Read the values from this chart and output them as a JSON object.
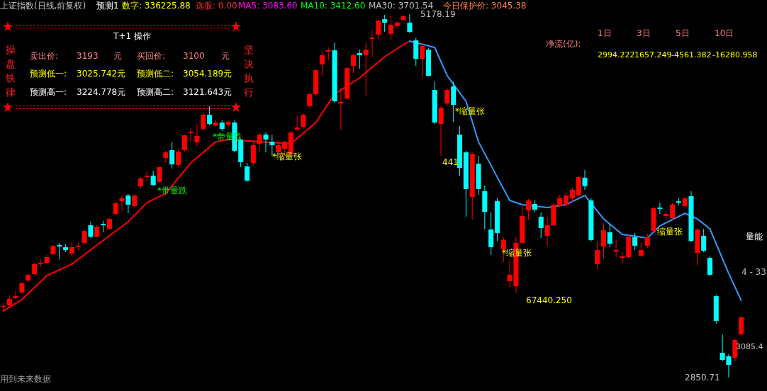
{
  "chart_data": {
    "type": "candlestick",
    "categories": [
      null,
      null,
      null,
      null,
      null,
      null,
      null,
      null,
      null,
      null,
      null,
      null,
      null,
      null,
      null,
      null,
      null,
      null,
      null,
      null,
      null,
      null,
      null,
      null,
      null,
      null,
      null,
      null,
      null,
      null,
      null,
      null,
      null,
      null,
      null,
      null,
      null,
      null,
      null,
      null,
      null,
      null,
      null,
      null,
      null,
      null,
      null,
      null,
      null,
      null,
      null,
      null,
      null,
      null,
      null,
      null,
      null,
      null,
      null,
      null,
      null,
      null,
      null,
      null,
      null,
      null,
      null,
      null,
      null,
      null,
      null,
      null,
      null,
      null,
      null,
      null,
      null,
      null,
      null,
      null,
      null,
      null,
      null,
      null,
      null,
      null,
      null,
      null,
      null,
      null,
      null,
      null,
      null,
      null,
      null,
      null,
      null,
      null,
      null,
      null,
      null,
      null,
      null,
      null,
      null,
      null,
      null,
      null,
      null,
      null,
      null,
      null,
      null,
      null,
      null,
      null,
      null,
      null,
      null
    ],
    "ohlc": [
      [
        3304,
        3327,
        3282,
        3309
      ],
      [
        3313,
        3377,
        3304,
        3354
      ],
      [
        3359,
        3404,
        3354,
        3372
      ],
      [
        3395,
        3463,
        3391,
        3454
      ],
      [
        3472,
        3518,
        3463,
        3509
      ],
      [
        3513,
        3586,
        3509,
        3577
      ],
      [
        3577,
        3608,
        3558,
        3586
      ],
      [
        3586,
        3636,
        3581,
        3622
      ],
      [
        3640,
        3699,
        3636,
        3695
      ],
      [
        3699,
        3713,
        3608,
        3690
      ],
      [
        3686,
        3704,
        3654,
        3667
      ],
      [
        3645,
        3713,
        3627,
        3686
      ],
      [
        3686,
        3717,
        3667,
        3695
      ],
      [
        3713,
        3794,
        3708,
        3790
      ],
      [
        3826,
        3849,
        3744,
        3753
      ],
      [
        3753,
        3826,
        3749,
        3817
      ],
      [
        3835,
        3853,
        3781,
        3826
      ],
      [
        3803,
        3871,
        3799,
        3867
      ],
      [
        3899,
        3976,
        3894,
        3967
      ],
      [
        3980,
        4017,
        3917,
        3999
      ],
      [
        4017,
        4026,
        3903,
        3958
      ],
      [
        3949,
        4021,
        3944,
        4017
      ],
      [
        4076,
        4135,
        4062,
        4126
      ],
      [
        4135,
        4175,
        4107,
        4144
      ],
      [
        4144,
        4175,
        4076,
        4085
      ],
      [
        4103,
        4203,
        4098,
        4198
      ],
      [
        4257,
        4303,
        4225,
        4293
      ],
      [
        4307,
        4361,
        4189,
        4216
      ],
      [
        4212,
        4307,
        4198,
        4298
      ],
      [
        4307,
        4407,
        4298,
        4402
      ],
      [
        4416,
        4448,
        4361,
        4425
      ],
      [
        4357,
        4475,
        4330,
        4398
      ],
      [
        4443,
        4543,
        4434,
        4534
      ],
      [
        4534,
        4588,
        4466,
        4475
      ],
      [
        4466,
        4498,
        4457,
        4484
      ],
      [
        4484,
        4498,
        4430,
        4443
      ],
      [
        4470,
        4498,
        4452,
        4489
      ],
      [
        4484,
        4498,
        4293,
        4303
      ],
      [
        4375,
        4380,
        4198,
        4230
      ],
      [
        4203,
        4225,
        4103,
        4112
      ],
      [
        4225,
        4361,
        4207,
        4339
      ],
      [
        4348,
        4416,
        4293,
        4407
      ],
      [
        4407,
        4420,
        4293,
        4375
      ],
      [
        4361,
        4407,
        4271,
        4339
      ],
      [
        4293,
        4361,
        4280,
        4339
      ],
      [
        4316,
        4371,
        4271,
        4361
      ],
      [
        4284,
        4430,
        4280,
        4420
      ],
      [
        4439,
        4529,
        4430,
        4452
      ],
      [
        4457,
        4543,
        4443,
        4534
      ],
      [
        4588,
        4675,
        4579,
        4666
      ],
      [
        4666,
        4824,
        4656,
        4820
      ],
      [
        4856,
        4938,
        4783,
        4915
      ],
      [
        4938,
        4965,
        4883,
        4947
      ],
      [
        4947,
        4997,
        4611,
        4620
      ],
      [
        4606,
        4702,
        4439,
        4616
      ],
      [
        4638,
        4838,
        4634,
        4833
      ],
      [
        4847,
        4924,
        4802,
        4915
      ],
      [
        4929,
        4951,
        4829,
        4915
      ],
      [
        4915,
        4997,
        4656,
        4951
      ],
      [
        5019,
        5074,
        4906,
        5028
      ],
      [
        5047,
        5142,
        5019,
        5137
      ],
      [
        5146,
        5174,
        5065,
        5124
      ],
      [
        5051,
        5169,
        5010,
        5110
      ],
      [
        5101,
        5133,
        5087,
        5124
      ],
      [
        5142,
        5174,
        5133,
        5165
      ],
      [
        5124,
        5178.19,
        5056,
        5065
      ],
      [
        5010,
        5028,
        4847,
        4892
      ],
      [
        4892,
        4997,
        4770,
        4974
      ],
      [
        4951,
        4960,
        4779,
        4783
      ],
      [
        4693,
        4747,
        4475,
        4484
      ],
      [
        4475,
        4588,
        4271,
        4579
      ],
      [
        4606,
        4702,
        4588,
        4693
      ],
      [
        4715,
        4747,
        4489,
        4597
      ],
      [
        4407,
        4461,
        4144,
        4194
      ],
      [
        4293,
        4303,
        3881,
        4058
      ],
      [
        4008,
        4293,
        3862,
        4284
      ],
      [
        4221,
        4271,
        4021,
        4058
      ],
      [
        4044,
        4080,
        3799,
        3912
      ],
      [
        3799,
        3908,
        3636,
        3686
      ],
      [
        3980,
        3999,
        3726,
        3776
      ],
      [
        3672,
        3753,
        3590,
        3731
      ],
      [
        3468,
        3604,
        3427,
        3509
      ],
      [
        3436,
        3753,
        3391,
        3713
      ],
      [
        3713,
        3949,
        3704,
        3885
      ],
      [
        3921,
        3994,
        3862,
        3985
      ],
      [
        3962,
        3985,
        3908,
        3926
      ],
      [
        3881,
        3908,
        3744,
        3808
      ],
      [
        3758,
        3881,
        3695,
        3826
      ],
      [
        3826,
        3967,
        3817,
        3958
      ],
      [
        3949,
        4021,
        3940,
        3999
      ],
      [
        3958,
        4035,
        3944,
        4017
      ],
      [
        3999,
        4067,
        3976,
        4053
      ],
      [
        4017,
        4144,
        4008,
        4135
      ],
      [
        4131,
        4180,
        4053,
        4076
      ],
      [
        3985,
        3999,
        3722,
        3731
      ],
      [
        3577,
        3726,
        3545,
        3667
      ],
      [
        3690,
        3840,
        3613,
        3794
      ],
      [
        3781,
        3835,
        3686,
        3708
      ],
      [
        3658,
        3735,
        3622,
        3667
      ],
      [
        3617,
        3654,
        3581,
        3627
      ],
      [
        3622,
        3763,
        3613,
        3753
      ],
      [
        3749,
        3776,
        3667,
        3695
      ],
      [
        3631,
        3717,
        3622,
        3667
      ],
      [
        3695,
        3772,
        3681,
        3749
      ],
      [
        3790,
        3944,
        3781,
        3935
      ],
      [
        3940,
        3971,
        3899,
        3931
      ],
      [
        3885,
        3917,
        3862,
        3899
      ],
      [
        3871,
        3967,
        3862,
        3958
      ],
      [
        3980,
        3999,
        3953,
        3971
      ],
      [
        3949,
        4008,
        3935,
        3999
      ],
      [
        4012,
        4044,
        3717,
        3726
      ],
      [
        3649,
        3808,
        3567,
        3799
      ],
      [
        3758,
        3803,
        3654,
        3663
      ],
      [
        3617,
        3627,
        3499,
        3509
      ],
      [
        3372,
        3382,
        3195,
        3214
      ],
      [
        3009,
        3127,
        2955,
        2964
      ],
      [
        2987,
        3000,
        2850.71,
        2932
      ],
      [
        2978,
        3100,
        2955,
        3091
      ],
      [
        3127,
        3245,
        3119,
        3236
      ]
    ],
    "colors": [
      "#ff0000",
      "#ff0000",
      "#ff0000",
      "#ff0000",
      "#ff0000",
      "#ff0000",
      "#ff0000",
      "#ff0000",
      "#ff0000",
      "#00ffff",
      "#00ffff",
      "#ff0000",
      "#ff0000",
      "#ff0000",
      "#00ffff",
      "#ff0000",
      "#00ffff",
      "#ff0000",
      "#ff0000",
      "#ff0000",
      "#00ffff",
      "#ff0000",
      "#ff0000",
      "#ff0000",
      "#00ffff",
      "#ff0000",
      "#ff0000",
      "#00ffff",
      "#ff0000",
      "#ff0000",
      "#ff0000",
      "#ff0000",
      "#ff0000",
      "#00ffff",
      "#ff0000",
      "#00ffff",
      "#ff0000",
      "#00ffff",
      "#00ffff",
      "#00ffff",
      "#ff0000",
      "#ff0000",
      "#00ffff",
      "#00ffff",
      "#ff0000",
      "#ff0000",
      "#ff0000",
      "#ff0000",
      "#ff0000",
      "#ff0000",
      "#ff0000",
      "#ff0000",
      "#ff0000",
      "#00ffff",
      "#ff0000",
      "#ff0000",
      "#ff0000",
      "#00ffff",
      "#ff0000",
      "#ff0000",
      "#ff0000",
      "#00ffff",
      "#ff0000",
      "#ff0000",
      "#ff0000",
      "#00ffff",
      "#00ffff",
      "#ff0000",
      "#00ffff",
      "#00ffff",
      "#ff0000",
      "#ff0000",
      "#00ffff",
      "#00ffff",
      "#00ffff",
      "#ff0000",
      "#00ffff",
      "#00ffff",
      "#00ffff",
      "#00ffff",
      "#ff0000",
      "#ff0000",
      "#ff0000",
      "#ff0000",
      "#ff0000",
      "#00ffff",
      "#00ffff",
      "#ff0000",
      "#ff0000",
      "#ff0000",
      "#ff0000",
      "#ff0000",
      "#ff0000",
      "#00ffff",
      "#00ffff",
      "#ff0000",
      "#ff0000",
      "#00ffff",
      "#ff0000",
      "#ff0000",
      "#ff0000",
      "#00ffff",
      "#ff0000",
      "#ff0000",
      "#ff0000",
      "#00ffff",
      "#ff0000",
      "#ff0000",
      "#00ffff",
      "#ff0000",
      "#00ffff",
      "#ff0000",
      "#00ffff",
      "#00ffff",
      "#00ffff",
      "#00ffff",
      "#00ffff",
      "#ff0000",
      "#ff0000"
    ],
    "series": [
      {
        "type": "line",
        "color": "#ff0000",
        "values": [
          3277,
          null,
          null,
          3350,
          null,
          null,
          null,
          3504,
          null,
          null,
          null,
          3577,
          null,
          null,
          null,
          3699,
          null,
          null,
          null,
          null,
          3849,
          null,
          null,
          3971,
          null,
          null,
          4030,
          null,
          null,
          null,
          4225,
          null,
          null,
          null,
          4361,
          null,
          4375,
          null,
          null,
          null,
          null,
          null,
          null,
          null,
          null,
          null,
          4348,
          null,
          null,
          null,
          4484,
          null,
          null,
          4666,
          null,
          null,
          null,
          4770,
          null,
          null,
          null,
          4906,
          null,
          null,
          4983,
          5006,
          null,
          null,
          null,
          null,
          null,
          null,
          null,
          null,
          null,
          null,
          null,
          null,
          null,
          null,
          null,
          null,
          null,
          null,
          null,
          null,
          null,
          null,
          null,
          null,
          null,
          null,
          null,
          null,
          null,
          null,
          null,
          null,
          null,
          null,
          null,
          null,
          null,
          null,
          null,
          null,
          null,
          null,
          null,
          null,
          null,
          null,
          null,
          null,
          null,
          null,
          null,
          null,
          null
        ]
      },
      {
        "type": "line",
        "color": "#3399ff",
        "values": [
          null,
          null,
          null,
          null,
          null,
          null,
          null,
          null,
          null,
          null,
          null,
          null,
          null,
          null,
          null,
          null,
          null,
          null,
          null,
          null,
          null,
          null,
          null,
          null,
          null,
          null,
          null,
          null,
          null,
          null,
          null,
          null,
          null,
          null,
          null,
          null,
          null,
          null,
          null,
          null,
          null,
          null,
          null,
          null,
          null,
          null,
          null,
          null,
          null,
          null,
          null,
          null,
          null,
          null,
          null,
          null,
          null,
          null,
          null,
          null,
          null,
          null,
          null,
          null,
          null,
          5006,
          null,
          null,
          null,
          4965,
          null,
          4784,
          null,
          null,
          4620,
          null,
          4361,
          null,
          null,
          4134,
          null,
          3985,
          null,
          3958,
          null,
          null,
          null,
          3940,
          null,
          null,
          3958,
          null,
          null,
          4017,
          null,
          null,
          3867,
          null,
          null,
          3767,
          null,
          null,
          null,
          3744,
          null,
          3822,
          null,
          null,
          null,
          3903,
          null,
          3867,
          null,
          3803,
          null,
          null,
          3518,
          null,
          3345
        ]
      }
    ],
    "annotations": [
      "上证指数(日线,前复权)",
      "预测1",
      "数字: 336225.88",
      "选股: 0.00",
      "MA5: 3083.60",
      "MA10: 3412.60",
      "MA30: 3701.54",
      "今日保护价: 3045.38",
      "T+1 操作",
      "卖出价:",
      "3193",
      "元",
      "买回价:",
      "3100",
      "元",
      "预测低一:",
      "3025.742元",
      "预测低二:",
      "3054.189元",
      "预测高一:",
      "3224.778元",
      "预测高二:",
      "3121.643元",
      "操盘铁律",
      "坚决执行",
      "净流(亿):",
      "1日",
      "3日",
      "5日",
      "10日",
      "2994.222",
      "1657.249",
      "-4561.382",
      "-16280.958",
      "5178.19",
      "2850.71",
      "441",
      "67440.250",
      "*缩量张",
      "*缩量张",
      "*缩量张",
      "缩量张",
      "*带量跌",
      "*带量跌",
      "用到未来数据",
      "3085.4",
      "4 - 33",
      "量能"
    ]
  }
}
